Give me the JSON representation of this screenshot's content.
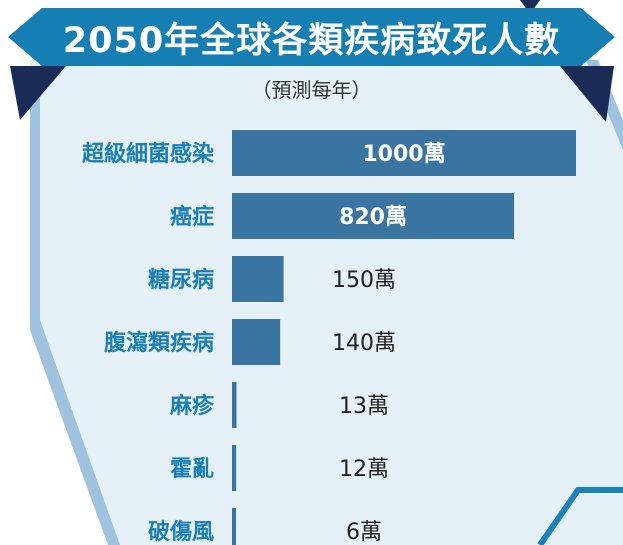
{
  "header": {
    "title": "2050年全球各類疾病致死人數",
    "subtitle": "（預測每年）"
  },
  "colors": {
    "banner": "#157fb3",
    "bar": "#3a74a0",
    "category_text": "#1a7fb5",
    "background_panel": "#e6f0f7",
    "frame_light": "#9fc3df",
    "dark_triangle": "#1a2c55"
  },
  "chart_data": {
    "type": "bar",
    "orientation": "horizontal",
    "title": "2050年全球各類疾病致死人數",
    "subtitle": "（預測每年）",
    "categories": [
      "超級細菌感染",
      "癌症",
      "糖尿病",
      "腹瀉類疾病",
      "麻疹",
      "霍亂",
      "破傷風"
    ],
    "values": [
      1000,
      820,
      150,
      140,
      13,
      12,
      6
    ],
    "value_labels": [
      "1000萬",
      "820萬",
      "150萬",
      "140萬",
      "13萬",
      "12萬",
      "6萬"
    ],
    "unit": "萬",
    "xlim": [
      0,
      1000
    ],
    "legend": "none",
    "grid": false
  }
}
